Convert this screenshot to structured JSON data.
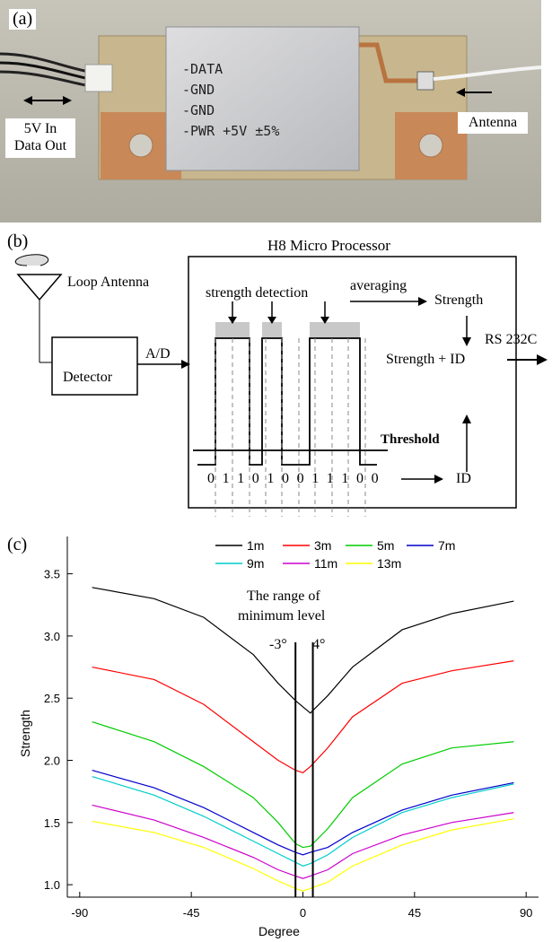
{
  "panel_a": {
    "label": "(a)",
    "pcb_lines": [
      "-DATA",
      "-GND",
      "-GND",
      "-PWR +5V ±5%"
    ],
    "tag_left_line1": "5V In",
    "tag_left_line2": "Data Out",
    "tag_right": "Antenna"
  },
  "panel_b": {
    "label": "(b)",
    "processor_title": "H8 Micro Processor",
    "loop_antenna": "Loop Antenna",
    "detector": "Detector",
    "ad": "A/D",
    "strength_detection": "strength detection",
    "averaging": "averaging",
    "strength": "Strength",
    "rs232c": "RS 232C",
    "strength_id": "Strength + ID",
    "threshold": "Threshold",
    "bits": "0 1 1 0 1 0 0 1 1 1 0 0",
    "id": "ID"
  },
  "panel_c": {
    "label": "(c)",
    "annotation_line1": "The range of",
    "annotation_line2": "minimum level",
    "marker_left": "-3°",
    "marker_right": "4°"
  },
  "chart_data": {
    "type": "line",
    "xlabel": "Degree",
    "ylabel": "Strength",
    "xlim": [
      -95,
      95
    ],
    "ylim": [
      0.9,
      3.8
    ],
    "xticks": [
      -90,
      -45,
      0,
      45,
      90
    ],
    "yticks": [
      1.0,
      1.5,
      2.0,
      2.5,
      3.0,
      3.5
    ],
    "vertical_markers": [
      -3,
      4
    ],
    "legend_position": "top-right",
    "grid": false,
    "series": [
      {
        "name": "1m",
        "color": "#000000",
        "x": [
          -85,
          -60,
          -40,
          -20,
          -10,
          -3,
          0,
          3,
          10,
          20,
          40,
          60,
          85
        ],
        "y": [
          3.39,
          3.3,
          3.15,
          2.85,
          2.62,
          2.48,
          2.43,
          2.38,
          2.52,
          2.75,
          3.05,
          3.18,
          3.28
        ]
      },
      {
        "name": "3m",
        "color": "#ff0000",
        "x": [
          -85,
          -60,
          -40,
          -20,
          -10,
          -3,
          0,
          3,
          10,
          20,
          40,
          60,
          85
        ],
        "y": [
          2.75,
          2.65,
          2.45,
          2.15,
          2.0,
          1.92,
          1.9,
          1.95,
          2.1,
          2.35,
          2.62,
          2.72,
          2.8
        ]
      },
      {
        "name": "5m",
        "color": "#00cc00",
        "x": [
          -85,
          -60,
          -40,
          -20,
          -10,
          -3,
          0,
          3,
          10,
          20,
          40,
          60,
          85
        ],
        "y": [
          2.31,
          2.15,
          1.95,
          1.7,
          1.5,
          1.33,
          1.3,
          1.31,
          1.45,
          1.7,
          1.97,
          2.1,
          2.15
        ]
      },
      {
        "name": "7m",
        "color": "#0000cc",
        "x": [
          -85,
          -60,
          -40,
          -20,
          -10,
          -3,
          0,
          3,
          10,
          20,
          40,
          60,
          85
        ],
        "y": [
          1.92,
          1.78,
          1.62,
          1.42,
          1.32,
          1.26,
          1.24,
          1.26,
          1.3,
          1.42,
          1.6,
          1.72,
          1.82
        ]
      },
      {
        "name": "9m",
        "color": "#00cccc",
        "x": [
          -85,
          -60,
          -40,
          -20,
          -10,
          -3,
          0,
          3,
          10,
          20,
          40,
          60,
          85
        ],
        "y": [
          1.87,
          1.72,
          1.55,
          1.35,
          1.25,
          1.18,
          1.15,
          1.17,
          1.24,
          1.38,
          1.58,
          1.7,
          1.81
        ]
      },
      {
        "name": "11m",
        "color": "#cc00cc",
        "x": [
          -85,
          -60,
          -40,
          -20,
          -10,
          -3,
          0,
          3,
          10,
          20,
          40,
          60,
          85
        ],
        "y": [
          1.64,
          1.52,
          1.38,
          1.22,
          1.12,
          1.07,
          1.05,
          1.07,
          1.12,
          1.25,
          1.4,
          1.5,
          1.58
        ]
      },
      {
        "name": "13m",
        "color": "#ffff00",
        "x": [
          -85,
          -60,
          -40,
          -20,
          -10,
          -3,
          0,
          3,
          10,
          20,
          40,
          60,
          85
        ],
        "y": [
          1.51,
          1.42,
          1.3,
          1.13,
          1.03,
          0.97,
          0.95,
          0.97,
          1.02,
          1.15,
          1.32,
          1.44,
          1.53
        ]
      }
    ]
  }
}
